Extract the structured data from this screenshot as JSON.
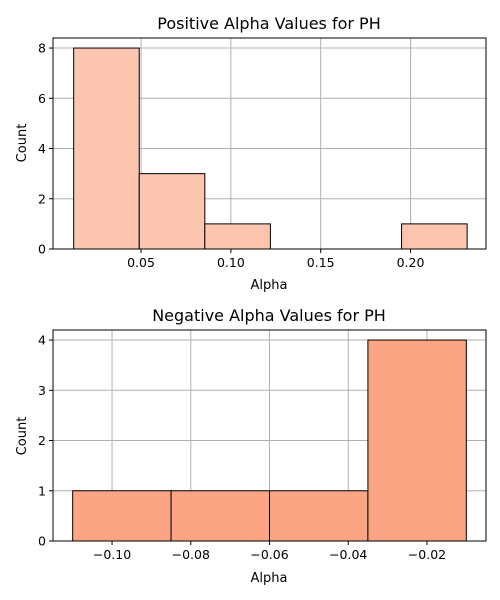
{
  "chart_data": [
    {
      "type": "bar",
      "title": "Positive Alpha Values for PH",
      "xlabel": "Alpha",
      "ylabel": "Count",
      "bin_edges": [
        0.0125,
        0.049,
        0.0855,
        0.122,
        0.1585,
        0.195,
        0.2315
      ],
      "counts": [
        8,
        3,
        1,
        0,
        0,
        1
      ],
      "xlim": [
        0.001,
        0.242
      ],
      "ylim": [
        0,
        8.4
      ],
      "xticks": [
        0.05,
        0.1,
        0.15,
        0.2
      ],
      "xtick_labels": [
        "0.05",
        "0.10",
        "0.15",
        "0.20"
      ],
      "yticks": [
        0,
        2,
        4,
        6,
        8
      ],
      "ytick_labels": [
        "0",
        "2",
        "4",
        "6",
        "8"
      ],
      "bar_color": "#fcc5b0",
      "grid": true
    },
    {
      "type": "bar",
      "title": "Negative Alpha Values for PH",
      "xlabel": "Alpha",
      "ylabel": "Count",
      "bin_edges": [
        -0.11,
        -0.085,
        -0.06,
        -0.035,
        -0.01
      ],
      "counts": [
        1,
        1,
        1,
        4
      ],
      "xlim": [
        -0.115,
        -0.005
      ],
      "ylim": [
        0,
        4.2
      ],
      "xticks": [
        -0.1,
        -0.08,
        -0.06,
        -0.04,
        -0.02
      ],
      "xtick_labels": [
        "−0.10",
        "−0.08",
        "−0.06",
        "−0.04",
        "−0.02"
      ],
      "yticks": [
        0,
        1,
        2,
        3,
        4
      ],
      "ytick_labels": [
        "0",
        "1",
        "2",
        "3",
        "4"
      ],
      "bar_color": "#fca584",
      "grid": true
    }
  ]
}
